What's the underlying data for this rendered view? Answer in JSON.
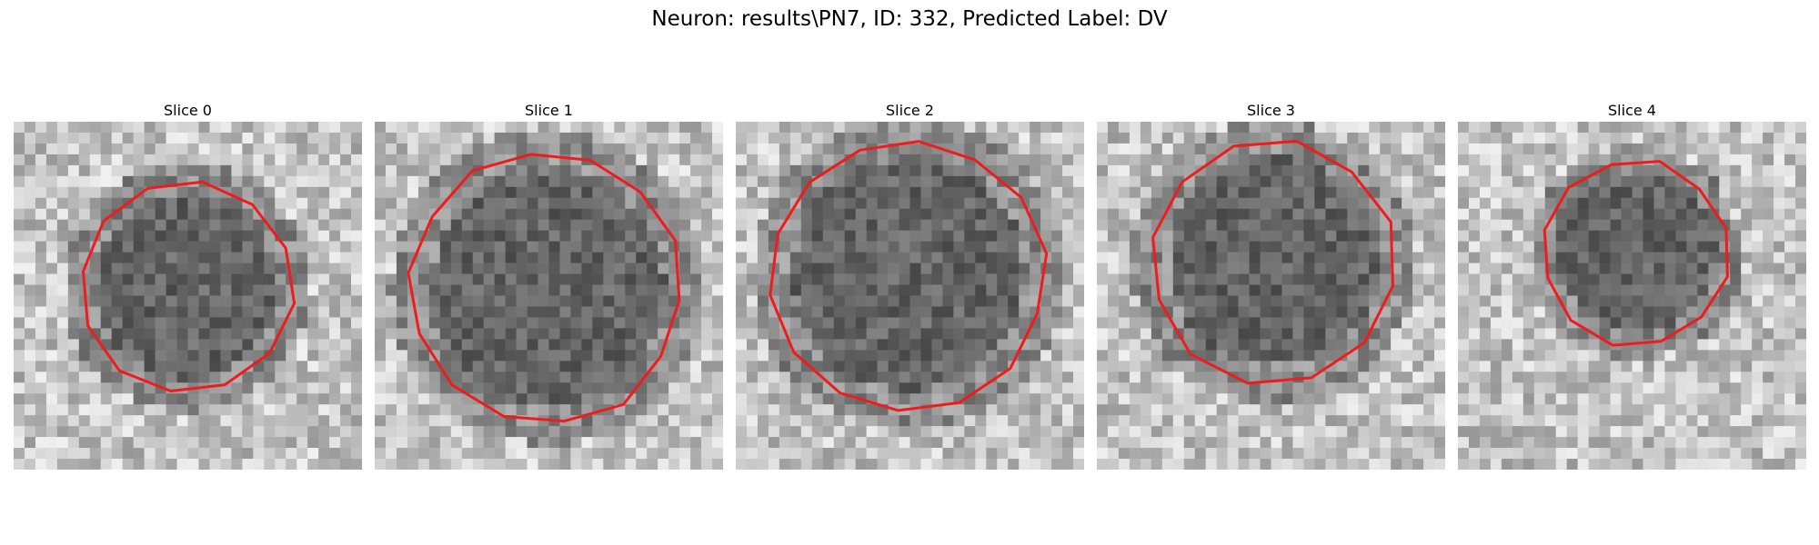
{
  "figure": {
    "title": "Neuron: results\\PN7, ID: 332, Predicted Label: DV"
  },
  "panels": [
    {
      "title": "Slice 0"
    },
    {
      "title": "Slice 1"
    },
    {
      "title": "Slice 2"
    },
    {
      "title": "Slice 3"
    },
    {
      "title": "Slice 4"
    }
  ],
  "colors": {
    "contour": "#ee1c1c",
    "background": "#ffffff"
  },
  "icons": []
}
